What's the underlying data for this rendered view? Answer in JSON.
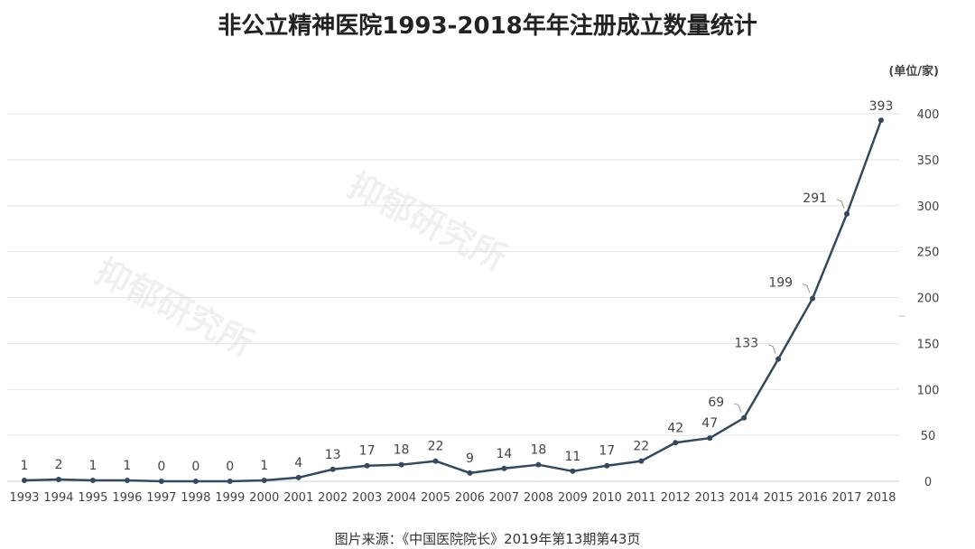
{
  "title": "非公立精神医院1993-2018年年注册成立数量统计",
  "unit_label": "(单位/家)",
  "source": "图片来源：《中国医院院长》2019年第13期第43页",
  "watermark": "抑郁研究所",
  "chart_data": {
    "type": "line",
    "title": "非公立精神医院1993-2018年年注册成立数量统计",
    "xlabel": "",
    "ylabel": "(单位/家)",
    "x": [
      "1993",
      "1994",
      "1995",
      "1996",
      "1997",
      "1998",
      "1999",
      "2000",
      "2001",
      "2002",
      "2003",
      "2004",
      "2005",
      "2006",
      "2007",
      "2008",
      "2009",
      "2010",
      "2011",
      "2012",
      "2013",
      "2014",
      "2015",
      "2016",
      "2017",
      "2018"
    ],
    "values": [
      1,
      2,
      1,
      1,
      0,
      0,
      0,
      1,
      4,
      13,
      17,
      18,
      22,
      9,
      14,
      18,
      11,
      17,
      22,
      42,
      47,
      69,
      133,
      199,
      291,
      393
    ],
    "ylim": [
      0,
      400
    ],
    "yticks": [
      0,
      50,
      100,
      150,
      200,
      250,
      300,
      350,
      400
    ],
    "y_axis_position": "right",
    "grid": true,
    "data_labels": true,
    "colors": {
      "line": "#34495e",
      "grid": "#e3e3e3",
      "text": "#444444"
    }
  }
}
